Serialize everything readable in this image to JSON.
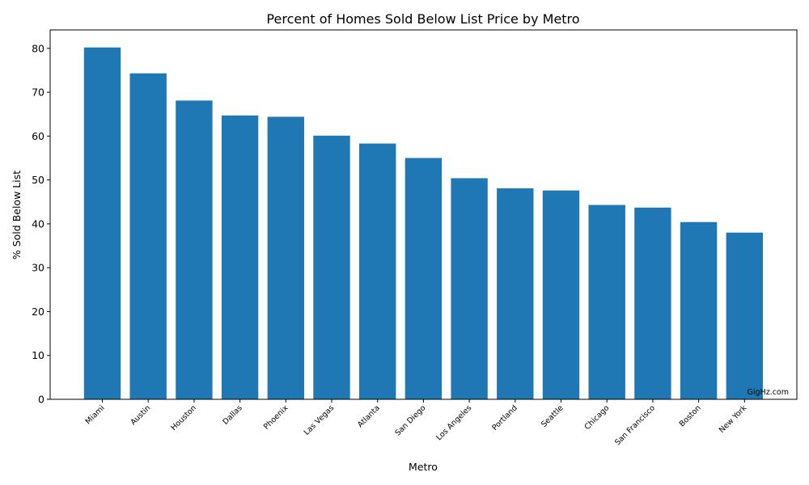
{
  "chart_data": {
    "type": "bar",
    "title": "Percent of Homes Sold Below List Price by Metro",
    "xlabel": "Metro",
    "ylabel": "% Sold Below List",
    "categories": [
      "Miami",
      "Austin",
      "Houston",
      "Dallas",
      "Phoenix",
      "Las Vegas",
      "Atlanta",
      "San Diego",
      "Los Angeles",
      "Portland",
      "Seattle",
      "Chicago",
      "San Francisco",
      "Boston",
      "New York"
    ],
    "values": [
      80.2,
      74.3,
      68.1,
      64.7,
      64.4,
      60.1,
      58.3,
      55.0,
      50.4,
      48.1,
      47.6,
      44.3,
      43.7,
      40.4,
      38.0
    ],
    "ylim": [
      0,
      84.2
    ],
    "yticks": [
      0,
      10,
      20,
      30,
      40,
      50,
      60,
      70,
      80
    ],
    "bar_color": "#1f77b4",
    "grid": false,
    "xtick_rotation": "45 degrees",
    "annotations": [
      {
        "text": "GigHz.com",
        "placement": "bottom-right inside axes"
      }
    ]
  }
}
